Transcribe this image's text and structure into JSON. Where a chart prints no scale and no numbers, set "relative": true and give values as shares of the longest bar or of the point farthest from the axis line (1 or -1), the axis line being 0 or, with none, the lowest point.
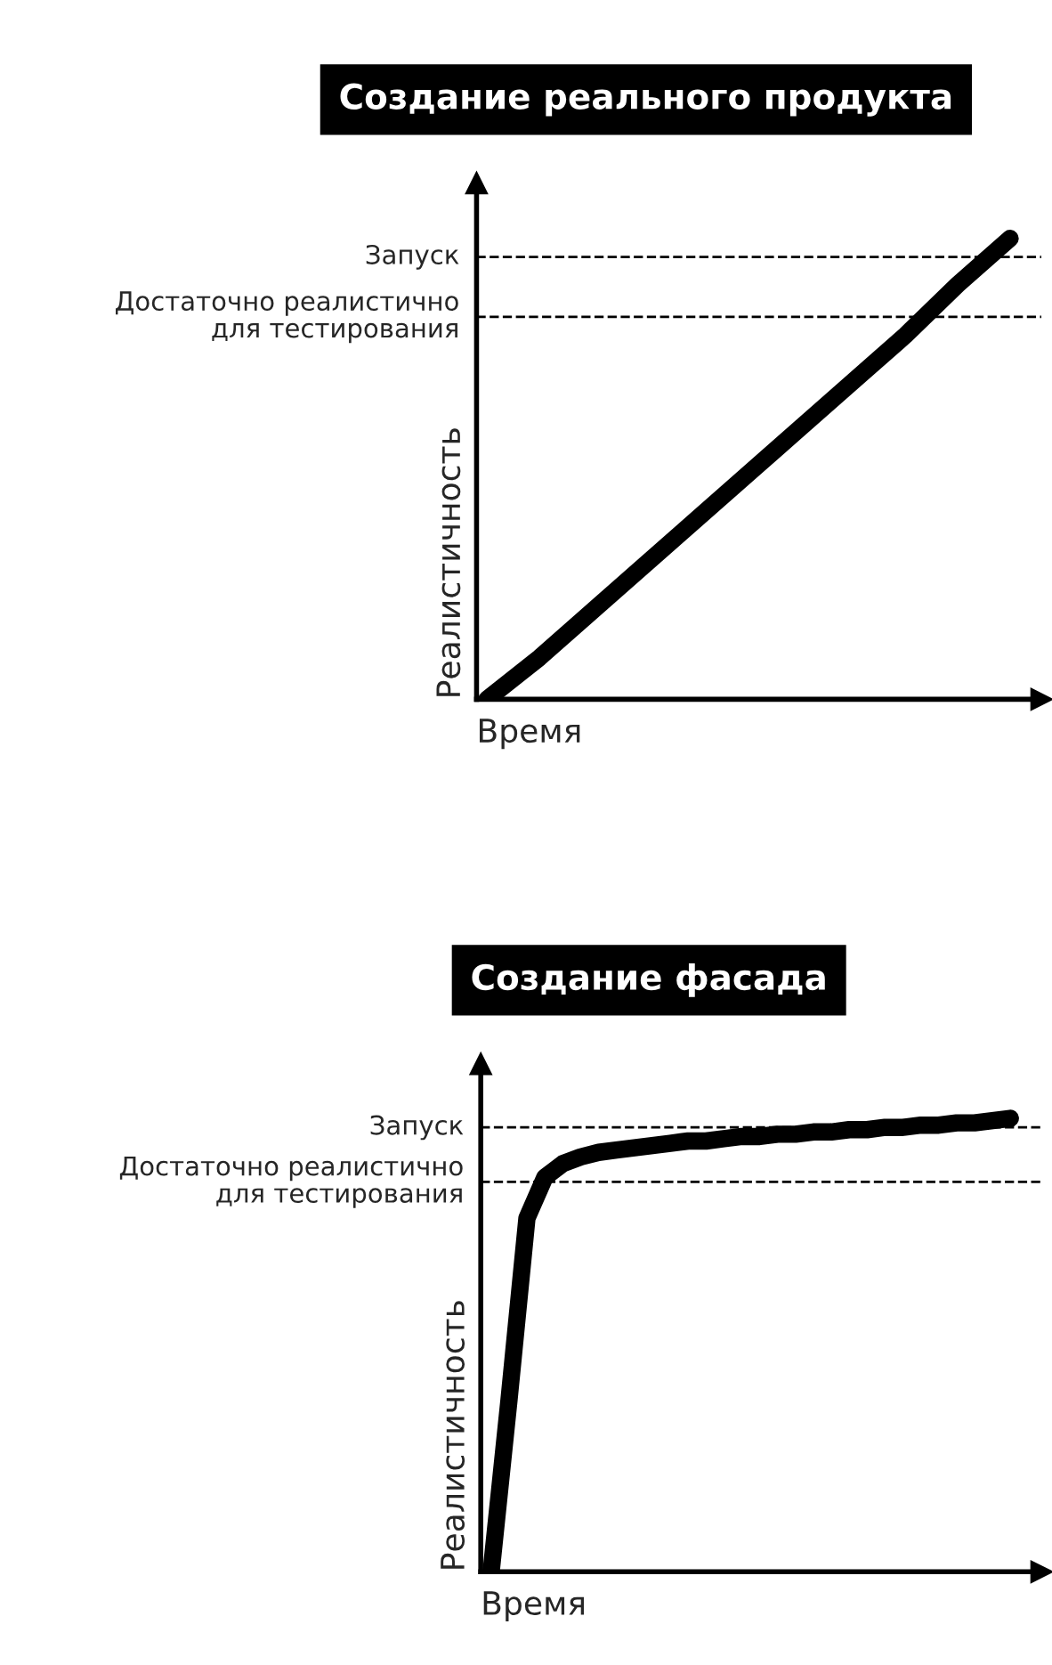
{
  "chart_data": [
    {
      "type": "line",
      "title": "Создание реального продукта",
      "xlabel": "Время",
      "ylabel": "Реалистичность",
      "relative": true,
      "categories": [
        null,
        null,
        null,
        null,
        null,
        null,
        null,
        null,
        null,
        null,
        null
      ],
      "series": [
        {
          "color": "#000000",
          "values": [
            0,
            0.09,
            0.19,
            0.29,
            0.39,
            0.49,
            0.59,
            0.69,
            0.79,
            0.9,
            1
          ]
        }
      ],
      "ref_lines": [
        {
          "axis": "y",
          "value": 0.96,
          "label": "Запуск",
          "line_style": "dashed",
          "color": "#000000"
        },
        {
          "axis": "y",
          "value": 0.83,
          "label": "Достаточно реалистично\nдля тестирования",
          "line_style": "dashed",
          "color": "#000000"
        }
      ]
    },
    {
      "type": "line",
      "title": "Создание фасада",
      "xlabel": "Время",
      "ylabel": "Реалистичность",
      "relative": true,
      "categories": [
        null,
        null,
        null,
        null,
        null,
        null,
        null,
        null,
        null,
        null,
        null,
        null,
        null,
        null,
        null,
        null,
        null,
        null,
        null,
        null,
        null,
        null,
        null,
        null,
        null,
        null,
        null,
        null,
        null,
        null
      ],
      "series": [
        {
          "color": "#000000",
          "values": [
            0,
            0.38,
            0.78,
            0.87,
            0.9,
            0.915,
            0.925,
            0.93,
            0.935,
            0.94,
            0.945,
            0.95,
            0.95,
            0.955,
            0.96,
            0.96,
            0.965,
            0.965,
            0.97,
            0.97,
            0.975,
            0.975,
            0.98,
            0.98,
            0.985,
            0.985,
            0.99,
            0.99,
            0.995,
            1
          ]
        }
      ],
      "ref_lines": [
        {
          "axis": "y",
          "value": 0.98,
          "label": "Запуск",
          "line_style": "dashed",
          "color": "#000000"
        },
        {
          "axis": "y",
          "value": 0.86,
          "label": "Достаточно реалистично\nдля тестирования",
          "line_style": "dashed",
          "color": "#000000"
        }
      ]
    }
  ]
}
